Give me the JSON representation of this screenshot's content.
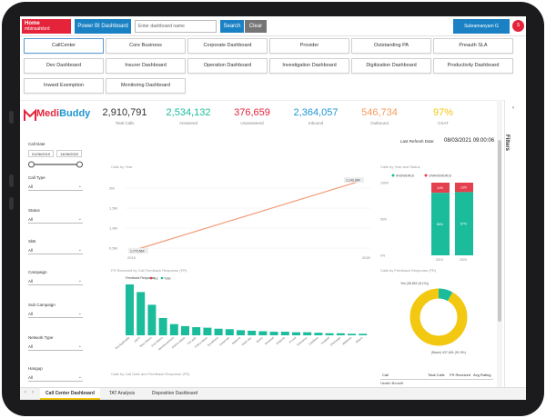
{
  "toolbar": {
    "home_title": "Home",
    "home_sub": "mbinsafebrd",
    "powerbi_label": "Power BI Dashboard",
    "search_placeholder": "Enter dashboard name",
    "search_label": "Search",
    "clear_label": "Clear",
    "user_name": "Subramanyam G",
    "user_initial": "S"
  },
  "nav": [
    "CallCenter",
    "Core Business",
    "Corporate Dashboard",
    "Provider",
    "Outstanding PA",
    "Preauth SLA",
    "Dev Dashboard",
    "Insurer Dashboard",
    "Operation Dashboard",
    "Investigation Dashboard",
    "Digitization Dashboard",
    "Productivity Dashboard",
    "Inward Exemption",
    "Monitoring Dashboard"
  ],
  "brand": {
    "name_a": "Medi",
    "name_b": "Buddy"
  },
  "kpis": [
    {
      "value": "2,910,791",
      "label": "Total Calls",
      "color": "#333333"
    },
    {
      "value": "2,534,132",
      "label": "Answered",
      "color": "#1abc9c"
    },
    {
      "value": "376,659",
      "label": "Unanswered",
      "color": "#e5243b"
    },
    {
      "value": "2,364,057",
      "label": "Inbound",
      "color": "#1f97d4"
    },
    {
      "value": "546,734",
      "label": "Outbound",
      "color": "#f39c5b"
    },
    {
      "value": "97%",
      "label": "CSAT",
      "color": "#f2c811"
    }
  ],
  "refresh": {
    "label": "Last Refresh Date:",
    "value": "08/03/2021 09:00:06"
  },
  "filters": {
    "call_date_label": "Call Date",
    "date_from": "01/06/2019",
    "date_to": "14/06/2020",
    "items": [
      {
        "label": "Call Type",
        "value": "All"
      },
      {
        "label": "Status",
        "value": "All"
      },
      {
        "label": "SkB",
        "value": "All"
      },
      {
        "label": "Campaign",
        "value": "All"
      },
      {
        "label": "Sub Campaign",
        "value": "All"
      },
      {
        "label": "Network Type",
        "value": "All"
      },
      {
        "label": "Hangup",
        "value": "All"
      }
    ]
  },
  "charts_titles": {
    "line": "Calls by Year",
    "bar": "FR Received by Call Feedback Response (FR)",
    "stack": "Calls by Year and Status",
    "donut": "Calls by Feedback Response (FR)",
    "bottom_left": "Calls by Call Date and Feedback Response (FR)"
  },
  "line_chart": {
    "y_ticks": [
      "2M",
      "1.5M",
      "1.0M",
      "0.5M"
    ],
    "x_ticks": [
      "2019",
      "2020"
    ],
    "start_label": "1,770,564",
    "end_label": "1,143,284",
    "accent": "#f39c7a"
  },
  "bar_chart": {
    "legend_title": "Feedback Response",
    "legend": [
      "Yes",
      "Total"
    ],
    "values": [
      100,
      85,
      60,
      34,
      22,
      18,
      16,
      15,
      13,
      12,
      10,
      9,
      8,
      7,
      7,
      6,
      6,
      5,
      4,
      4,
      3,
      3
    ],
    "categories": [
      "Not Applicable",
      "CRTT",
      "Rest Others",
      "Prof Others",
      "Reimbursement",
      "Claims status",
      "Pre auth",
      "Policy status",
      "Enrollment",
      "Corporate",
      "Network",
      "Claim doc",
      "Query",
      "Renewal",
      "Endorse",
      "E-card",
      "Grievance",
      "Cashless",
      "Hospital",
      "Discharge",
      "Wellness",
      "Others"
    ],
    "color": "#1abc9c"
  },
  "stack_chart": {
    "legend": [
      "ANSWERED",
      "UNANSWERED"
    ],
    "y_ticks": [
      "100%",
      "50%",
      "0%"
    ],
    "categories": [
      "2019",
      "2020"
    ],
    "answered_pct": [
      86,
      87
    ],
    "unanswered_pct": [
      14,
      13
    ],
    "answered_label": [
      "86%",
      "87%"
    ],
    "unanswered_label": [
      "14%",
      "13%"
    ],
    "colors": [
      "#1abc9c",
      "#e5404e"
    ]
  },
  "donut_chart": {
    "top_label": "Yes (38,652 (8.1%))",
    "bottom_label": "(Blank) 437,651 (91.9%)",
    "values": [
      8.1,
      91.9
    ],
    "colors": [
      "#1abc9c",
      "#f2c811"
    ]
  },
  "table": {
    "headers": [
      "Call",
      "Total Calls",
      "FR Received",
      "Avg Rating"
    ],
    "first_row": "Health Benefit"
  },
  "tabs": [
    "Call Center Dashboard",
    "TAT Analysis",
    "Disposition Dashboard"
  ],
  "filters_pane": "Filters"
}
